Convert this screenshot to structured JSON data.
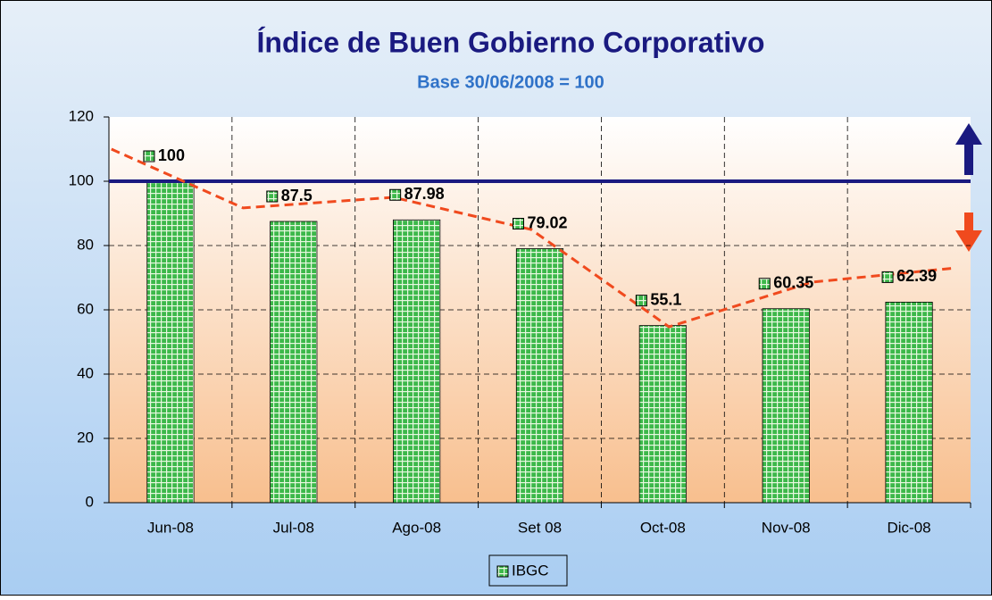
{
  "chart_data": {
    "type": "bar",
    "title": "Índice de Buen Gobierno Corporativo",
    "subtitle": "Base 30/06/2008 = 100",
    "categories": [
      "Jun-08",
      "Jul-08",
      "Ago-08",
      "Set 08",
      "Oct-08",
      "Nov-08",
      "Dic-08"
    ],
    "series": [
      {
        "name": "IBGC",
        "color": "#3cb84a",
        "values": [
          100,
          87.5,
          87.98,
          79.02,
          55.1,
          60.35,
          62.39
        ]
      }
    ],
    "ylim": [
      0,
      120
    ],
    "yticks": [
      0,
      20,
      40,
      60,
      80,
      100,
      120
    ],
    "grid": true,
    "reference_line": {
      "value": 100,
      "color": "#1a1a80"
    },
    "trend": {
      "color": "#f04a1e",
      "x": [
        -0.48,
        0.59,
        1.81,
        2.93,
        4.05,
        5.21,
        6.37
      ],
      "values": [
        110,
        91.7,
        95,
        85,
        54.7,
        68.6,
        73
      ]
    },
    "legend": "bottom"
  }
}
